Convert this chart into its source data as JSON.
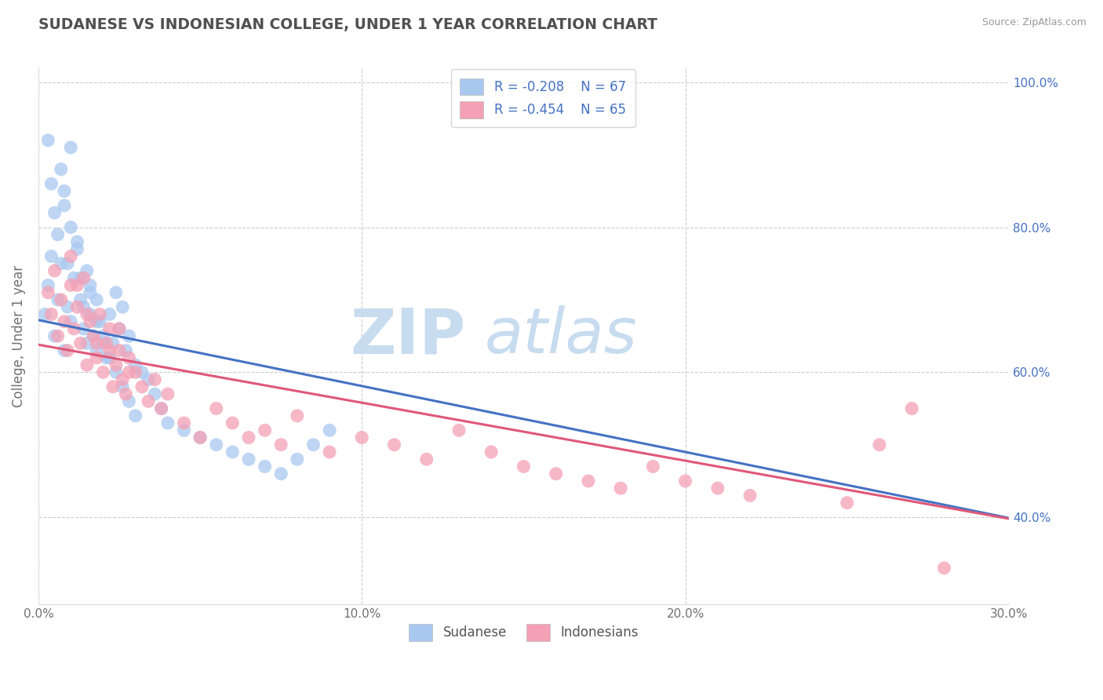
{
  "title": "SUDANESE VS INDONESIAN COLLEGE, UNDER 1 YEAR CORRELATION CHART",
  "source_text": "Source: ZipAtlas.com",
  "xlabel": "",
  "ylabel": "College, Under 1 year",
  "xlim": [
    0.0,
    0.3
  ],
  "ylim": [
    0.28,
    1.02
  ],
  "xtick_labels": [
    "0.0%",
    "10.0%",
    "20.0%",
    "30.0%"
  ],
  "xtick_values": [
    0.0,
    0.1,
    0.2,
    0.3
  ],
  "ytick_labels_left": [
    "40.0%",
    "60.0%",
    "80.0%",
    "100.0%"
  ],
  "ytick_labels_right": [
    "100.0%",
    "80.0%",
    "60.0%",
    "40.0%"
  ],
  "ytick_values": [
    0.4,
    0.6,
    0.8,
    1.0
  ],
  "legend_r1": "R = -0.208",
  "legend_n1": "N = 67",
  "legend_r2": "R = -0.454",
  "legend_n2": "N = 65",
  "blue_color": "#A8C8F0",
  "pink_color": "#F4A0B5",
  "blue_line_color": "#4472C4",
  "pink_line_color": "#E05878",
  "watermark_zip": "ZIP",
  "watermark_atlas": "atlas",
  "background_color": "#FFFFFF",
  "grid_color": "#CCCCCC",
  "title_color": "#505050",
  "axis_label_color": "#707070",
  "legend_value_color": "#4472C4",
  "right_axis_color": "#4472C4",
  "blue_line_intercept": 0.672,
  "blue_line_slope": -0.91,
  "pink_line_intercept": 0.638,
  "pink_line_slope": -0.8,
  "sudanese_x": [
    0.002,
    0.003,
    0.004,
    0.005,
    0.005,
    0.006,
    0.007,
    0.007,
    0.008,
    0.008,
    0.009,
    0.01,
    0.01,
    0.011,
    0.012,
    0.013,
    0.014,
    0.015,
    0.015,
    0.016,
    0.016,
    0.017,
    0.018,
    0.018,
    0.019,
    0.02,
    0.021,
    0.022,
    0.023,
    0.024,
    0.025,
    0.026,
    0.027,
    0.028,
    0.03,
    0.032,
    0.034,
    0.036,
    0.038,
    0.04,
    0.045,
    0.05,
    0.055,
    0.06,
    0.065,
    0.07,
    0.075,
    0.08,
    0.085,
    0.09,
    0.003,
    0.004,
    0.006,
    0.008,
    0.009,
    0.01,
    0.012,
    0.013,
    0.014,
    0.016,
    0.018,
    0.02,
    0.022,
    0.024,
    0.026,
    0.028,
    0.03
  ],
  "sudanese_y": [
    0.68,
    0.72,
    0.76,
    0.82,
    0.65,
    0.7,
    0.88,
    0.75,
    0.85,
    0.63,
    0.69,
    0.8,
    0.67,
    0.73,
    0.78,
    0.7,
    0.66,
    0.74,
    0.64,
    0.68,
    0.72,
    0.65,
    0.7,
    0.63,
    0.67,
    0.65,
    0.62,
    0.68,
    0.64,
    0.71,
    0.66,
    0.69,
    0.63,
    0.65,
    0.61,
    0.6,
    0.59,
    0.57,
    0.55,
    0.53,
    0.52,
    0.51,
    0.5,
    0.49,
    0.48,
    0.47,
    0.46,
    0.48,
    0.5,
    0.52,
    0.92,
    0.86,
    0.79,
    0.83,
    0.75,
    0.91,
    0.77,
    0.73,
    0.69,
    0.71,
    0.67,
    0.64,
    0.62,
    0.6,
    0.58,
    0.56,
    0.54
  ],
  "indonesian_x": [
    0.003,
    0.004,
    0.005,
    0.006,
    0.007,
    0.008,
    0.009,
    0.01,
    0.011,
    0.012,
    0.013,
    0.014,
    0.015,
    0.016,
    0.017,
    0.018,
    0.019,
    0.02,
    0.021,
    0.022,
    0.023,
    0.024,
    0.025,
    0.026,
    0.027,
    0.028,
    0.03,
    0.032,
    0.034,
    0.036,
    0.038,
    0.04,
    0.045,
    0.05,
    0.055,
    0.06,
    0.065,
    0.07,
    0.075,
    0.08,
    0.09,
    0.1,
    0.11,
    0.12,
    0.13,
    0.14,
    0.15,
    0.16,
    0.17,
    0.18,
    0.19,
    0.2,
    0.21,
    0.22,
    0.25,
    0.26,
    0.27,
    0.28,
    0.01,
    0.012,
    0.015,
    0.018,
    0.022,
    0.025,
    0.028
  ],
  "indonesian_y": [
    0.71,
    0.68,
    0.74,
    0.65,
    0.7,
    0.67,
    0.63,
    0.72,
    0.66,
    0.69,
    0.64,
    0.73,
    0.61,
    0.67,
    0.65,
    0.62,
    0.68,
    0.6,
    0.64,
    0.63,
    0.58,
    0.61,
    0.66,
    0.59,
    0.57,
    0.62,
    0.6,
    0.58,
    0.56,
    0.59,
    0.55,
    0.57,
    0.53,
    0.51,
    0.55,
    0.53,
    0.51,
    0.52,
    0.5,
    0.54,
    0.49,
    0.51,
    0.5,
    0.48,
    0.52,
    0.49,
    0.47,
    0.46,
    0.45,
    0.44,
    0.47,
    0.45,
    0.44,
    0.43,
    0.42,
    0.5,
    0.55,
    0.33,
    0.76,
    0.72,
    0.68,
    0.64,
    0.66,
    0.63,
    0.6
  ]
}
